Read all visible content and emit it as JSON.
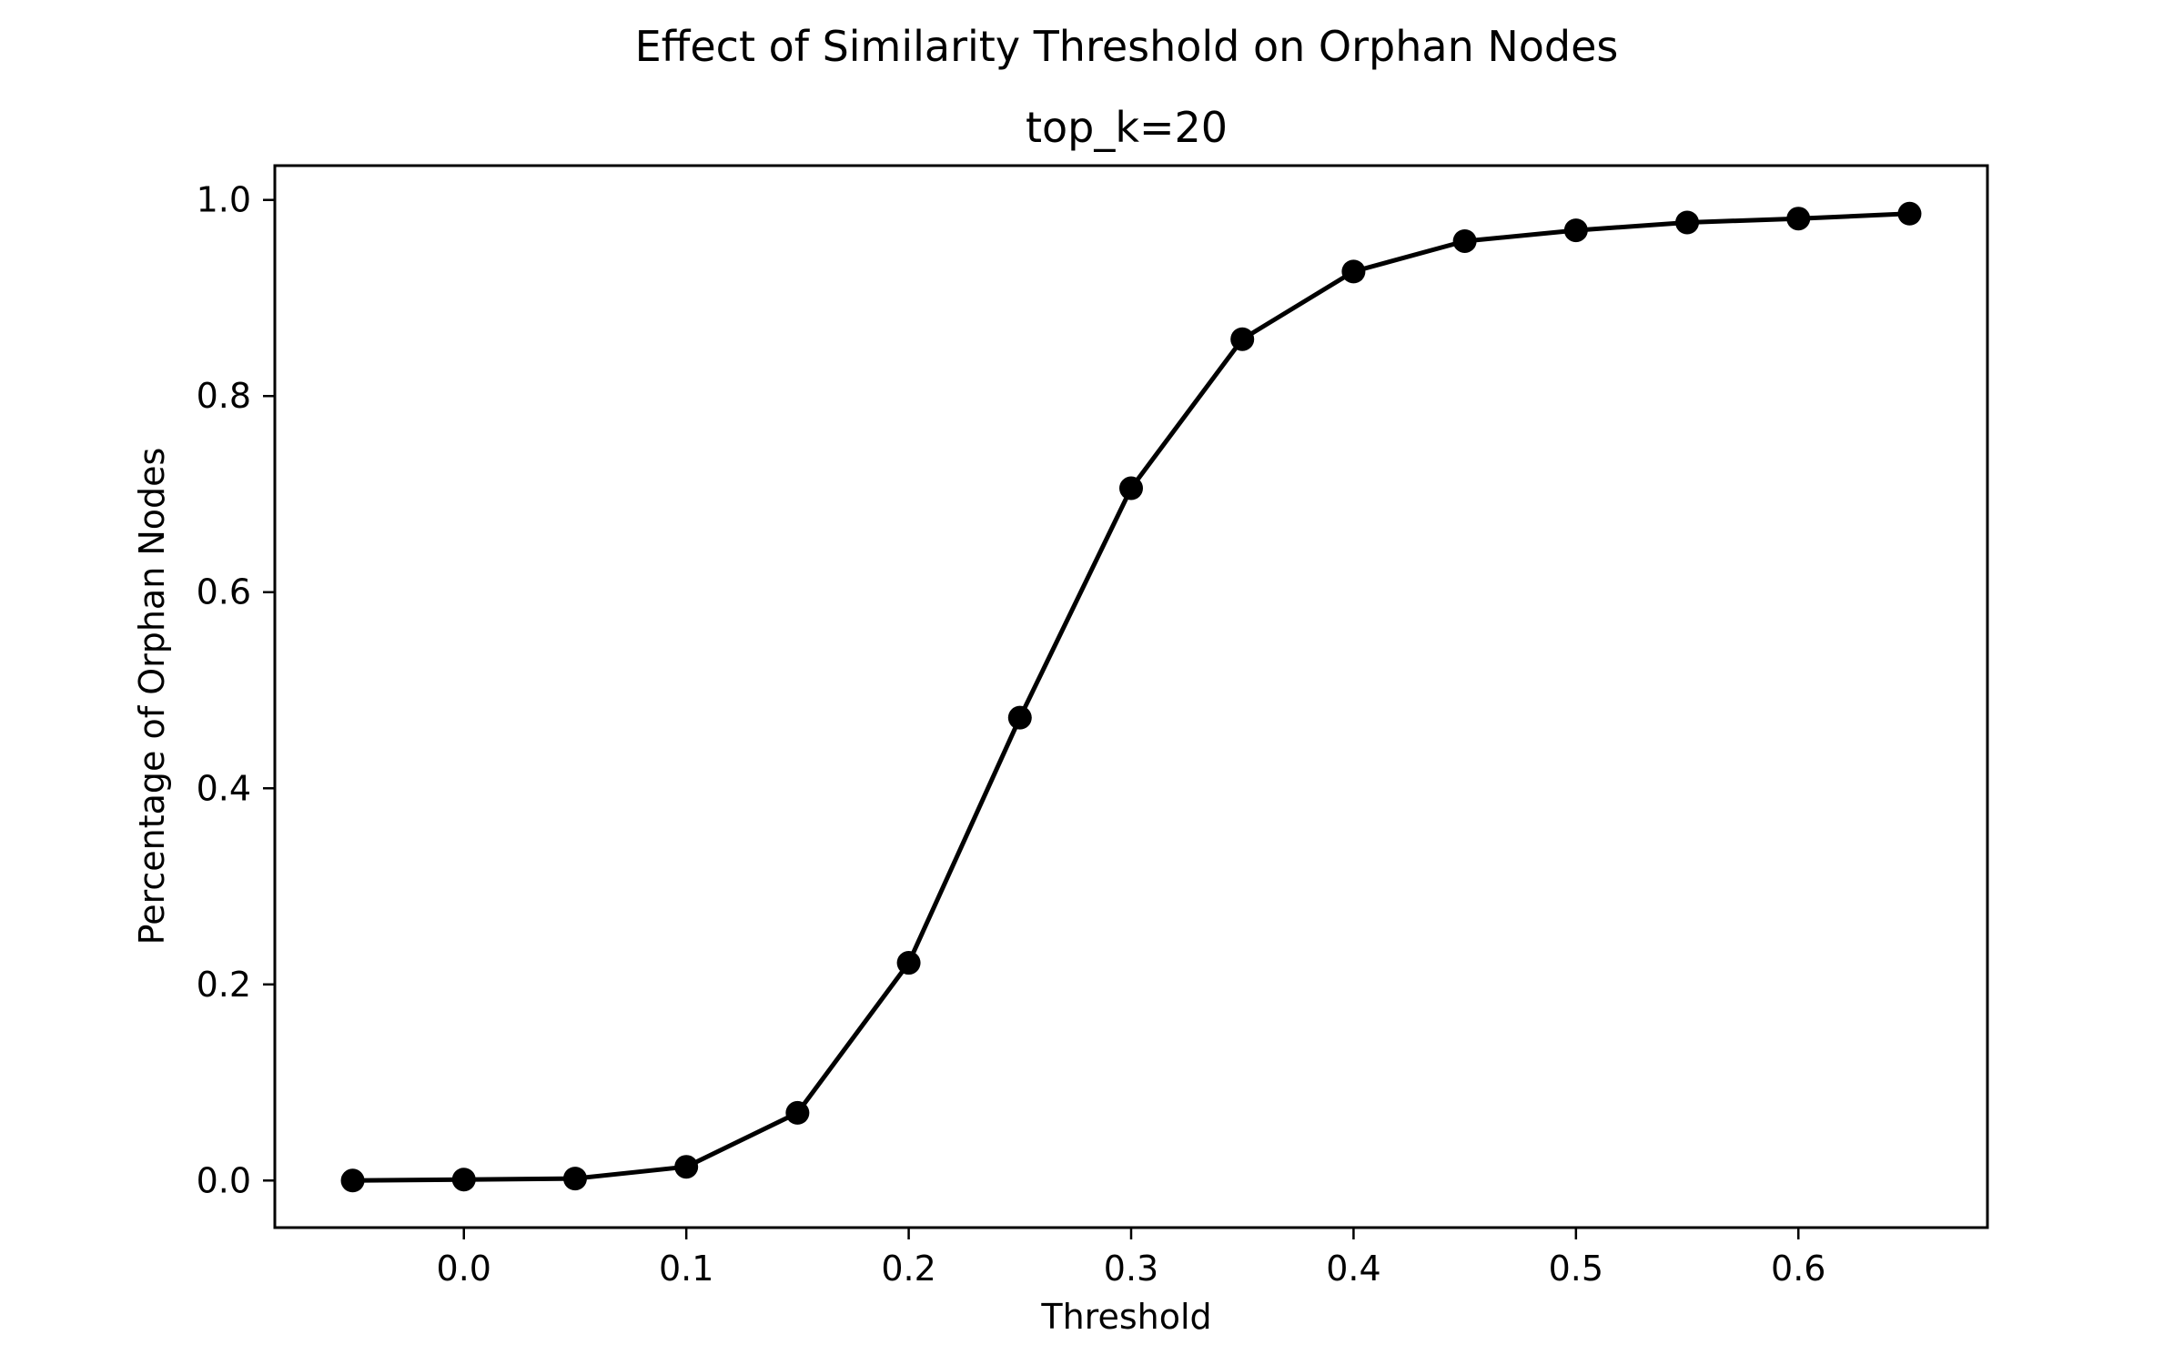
{
  "chart_data": {
    "type": "line",
    "title": "Effect of Similarity Threshold on Orphan Nodes",
    "subtitle": "top_k=20",
    "xlabel": "Threshold",
    "ylabel": "Percentage of Orphan Nodes",
    "xlim": [
      -0.085,
      0.685
    ],
    "ylim": [
      -0.048,
      1.035
    ],
    "xticks": [
      0.0,
      0.1,
      0.2,
      0.3,
      0.4,
      0.5,
      0.6
    ],
    "xtick_labels": [
      "0.0",
      "0.1",
      "0.2",
      "0.3",
      "0.4",
      "0.5",
      "0.6"
    ],
    "yticks": [
      0.0,
      0.2,
      0.4,
      0.6,
      0.8,
      1.0
    ],
    "ytick_labels": [
      "0.0",
      "0.2",
      "0.4",
      "0.6",
      "0.8",
      "1.0"
    ],
    "grid": false,
    "line_color": "#000000",
    "marker": "circle",
    "x": [
      -0.05,
      0.0,
      0.05,
      0.1,
      0.15,
      0.2,
      0.25,
      0.3,
      0.35,
      0.4,
      0.45,
      0.5,
      0.55,
      0.6,
      0.65
    ],
    "y": [
      0.0,
      0.001,
      0.002,
      0.014,
      0.069,
      0.222,
      0.472,
      0.706,
      0.858,
      0.927,
      0.958,
      0.969,
      0.977,
      0.981,
      0.986
    ]
  }
}
